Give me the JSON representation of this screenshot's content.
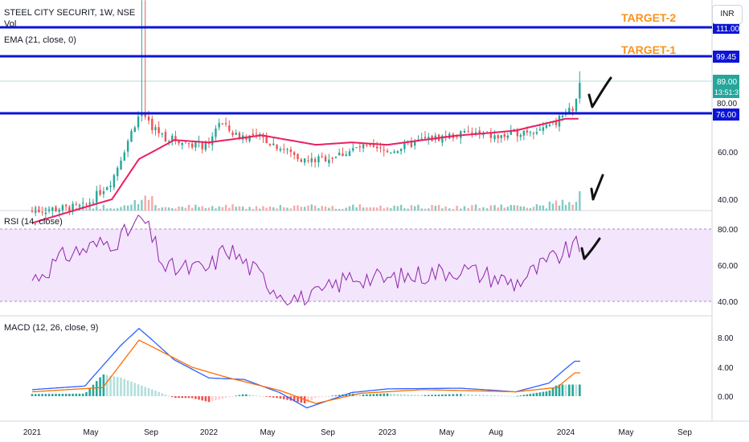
{
  "header": {
    "symbol": "STEEL CITY SECURIT, 1W, NSE",
    "volume_label": "Vol",
    "ema_label": "EMA (21, close, 0)",
    "currency": "INR"
  },
  "panes": {
    "rsi_label": "RSI (14, close)",
    "macd_label": "MACD (12, 26, close, 9)"
  },
  "annotations": {
    "target2": "TARGET-2",
    "target1": "TARGET-1"
  },
  "price_tags": {
    "level_111": "111.00",
    "level_99": "99.45",
    "last_price": "89.00",
    "countdown": "13:51:37",
    "level_80": "80.00",
    "level_76": "76.00"
  },
  "colors": {
    "up": "#26a69a",
    "down": "#ef5350",
    "ema": "#e91e63",
    "level_line": "#0c14d6",
    "target": "#f7931e",
    "rsi": "#8e24aa",
    "rsi_band": "#f3e5fc",
    "macd": "#2962ff",
    "signal": "#ff6d00"
  },
  "chart_data": [
    {
      "type": "candlestick",
      "title": "STEEL CITY SECURIT, 1W, NSE",
      "y_ticks": [
        "40.00",
        "60.00",
        "80.00"
      ],
      "ylim": [
        34,
        126
      ],
      "x_ticks": [
        "2021",
        "May",
        "Sep",
        "2022",
        "May",
        "Sep",
        "2023",
        "May",
        "Aug",
        "2024",
        "May",
        "Sep"
      ],
      "horizontal_levels": [
        111.0,
        99.45,
        76.0
      ],
      "last_price": 89.0,
      "series": [
        {
          "name": "EMA (21, close, 0)",
          "approx_path": [
            [
              2021.0,
              30
            ],
            [
              2021.45,
              40
            ],
            [
              2021.6,
              57
            ],
            [
              2021.8,
              65
            ],
            [
              2022.0,
              64
            ],
            [
              2022.3,
              67
            ],
            [
              2022.6,
              63
            ],
            [
              2022.8,
              64
            ],
            [
              2023.0,
              63
            ],
            [
              2023.4,
              67
            ],
            [
              2023.7,
              69
            ],
            [
              2024.0,
              74
            ]
          ]
        }
      ]
    },
    {
      "type": "line",
      "title": "RSI (14, close)",
      "y_ticks": [
        "40.00",
        "60.00",
        "80.00"
      ],
      "ylim": [
        37,
        89
      ],
      "band": [
        40,
        80
      ],
      "approx_path": [
        [
          2021.0,
          52
        ],
        [
          2021.2,
          66
        ],
        [
          2021.5,
          75
        ],
        [
          2021.62,
          86
        ],
        [
          2021.75,
          58
        ],
        [
          2022.0,
          58
        ],
        [
          2022.1,
          70
        ],
        [
          2022.4,
          45
        ],
        [
          2022.55,
          40
        ],
        [
          2022.8,
          54
        ],
        [
          2023.0,
          52
        ],
        [
          2023.4,
          58
        ],
        [
          2023.7,
          50
        ],
        [
          2023.9,
          62
        ],
        [
          2024.05,
          70
        ]
      ]
    },
    {
      "type": "bar+line",
      "title": "MACD (12, 26, close, 9)",
      "y_ticks": [
        "0.00",
        "4.00",
        "8.00"
      ],
      "ylim": [
        -2,
        10
      ],
      "series": [
        {
          "name": "MACD"
        },
        {
          "name": "Signal"
        },
        {
          "name": "Histogram"
        }
      ],
      "macd_path": [
        [
          2021.0,
          0.9
        ],
        [
          2021.3,
          1.4
        ],
        [
          2021.5,
          7.0
        ],
        [
          2021.6,
          9.3
        ],
        [
          2021.8,
          5.0
        ],
        [
          2022.0,
          2.5
        ],
        [
          2022.2,
          2.3
        ],
        [
          2022.4,
          0.5
        ],
        [
          2022.55,
          -1.6
        ],
        [
          2022.8,
          0.5
        ],
        [
          2023.0,
          1.0
        ],
        [
          2023.4,
          1.1
        ],
        [
          2023.7,
          0.6
        ],
        [
          2023.9,
          1.8
        ],
        [
          2024.05,
          4.8
        ]
      ],
      "signal_path": [
        [
          2021.0,
          0.6
        ],
        [
          2021.4,
          1.2
        ],
        [
          2021.6,
          7.7
        ],
        [
          2021.9,
          4.0
        ],
        [
          2022.1,
          2.6
        ],
        [
          2022.4,
          0.8
        ],
        [
          2022.6,
          -1.0
        ],
        [
          2022.85,
          0.4
        ],
        [
          2023.2,
          0.9
        ],
        [
          2023.7,
          0.6
        ],
        [
          2023.95,
          1.2
        ],
        [
          2024.05,
          3.2
        ]
      ]
    }
  ]
}
